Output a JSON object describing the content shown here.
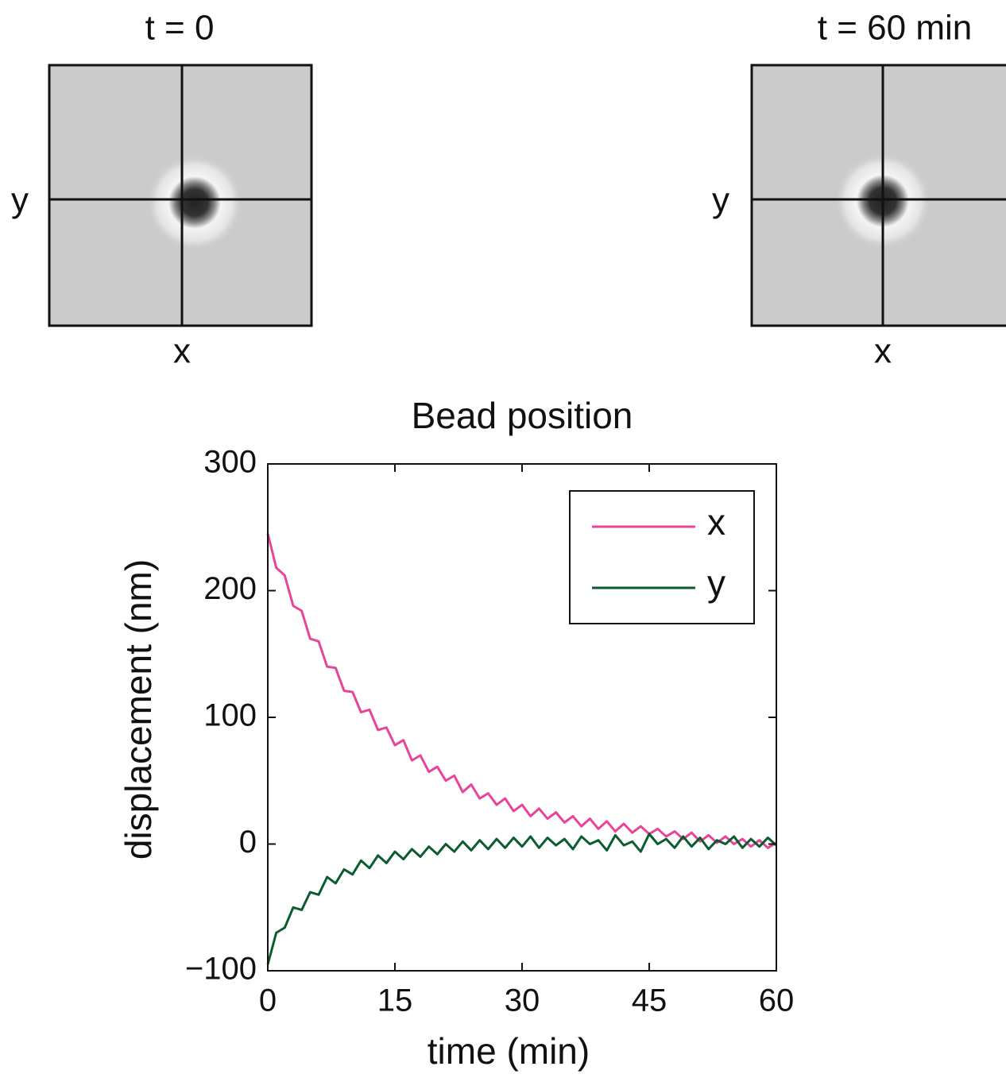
{
  "panels": [
    {
      "title": "t = 0",
      "x_label": "x",
      "y_label": "y"
    },
    {
      "title": "t = 60 min",
      "x_label": "x",
      "y_label": "y"
    }
  ],
  "chart_data": {
    "type": "line",
    "title": "Bead position",
    "x_label": "time (min)",
    "y_label": "displacement (nm)",
    "x": [
      0,
      1,
      2,
      3,
      4,
      5,
      6,
      7,
      8,
      9,
      10,
      11,
      12,
      13,
      14,
      15,
      16,
      17,
      18,
      19,
      20,
      21,
      22,
      23,
      24,
      25,
      26,
      27,
      28,
      29,
      30,
      31,
      32,
      33,
      34,
      35,
      36,
      37,
      38,
      39,
      40,
      41,
      42,
      43,
      44,
      45,
      46,
      47,
      48,
      49,
      50,
      51,
      52,
      53,
      54,
      55,
      56,
      57,
      58,
      59,
      60
    ],
    "series": [
      {
        "name": "x",
        "color": "#e8449a",
        "values": [
          245,
          218,
          212,
          188,
          184,
          162,
          160,
          140,
          139,
          121,
          120,
          104,
          106,
          90,
          92,
          78,
          82,
          66,
          70,
          57,
          61,
          50,
          54,
          41,
          47,
          36,
          40,
          31,
          36,
          26,
          31,
          22,
          28,
          20,
          25,
          17,
          22,
          14,
          20,
          12,
          18,
          10,
          16,
          9,
          14,
          8,
          12,
          6,
          10,
          4,
          9,
          2,
          7,
          1,
          6,
          0,
          4,
          -2,
          3,
          -3,
          1
        ]
      },
      {
        "name": "y",
        "color": "#0b5c2e",
        "values": [
          -95,
          -70,
          -66,
          -50,
          -52,
          -38,
          -40,
          -26,
          -31,
          -20,
          -24,
          -13,
          -19,
          -9,
          -15,
          -6,
          -12,
          -4,
          -10,
          -2,
          -8,
          0,
          -6,
          2,
          -5,
          3,
          -4,
          4,
          -3,
          5,
          -2,
          6,
          -3,
          5,
          -1,
          4,
          -4,
          6,
          0,
          3,
          -5,
          7,
          -1,
          2,
          -6,
          8,
          0,
          4,
          -3,
          6,
          -2,
          5,
          -4,
          3,
          0,
          6,
          -3,
          4,
          -2,
          5,
          -1
        ]
      }
    ],
    "xlim": [
      0,
      60
    ],
    "xticks": [
      0,
      15,
      30,
      45,
      60
    ],
    "ylim": [
      -100,
      300
    ],
    "yticks": [
      {
        "value": -100,
        "label": "−100"
      },
      0,
      100,
      200,
      300
    ],
    "legend": "upper right"
  }
}
